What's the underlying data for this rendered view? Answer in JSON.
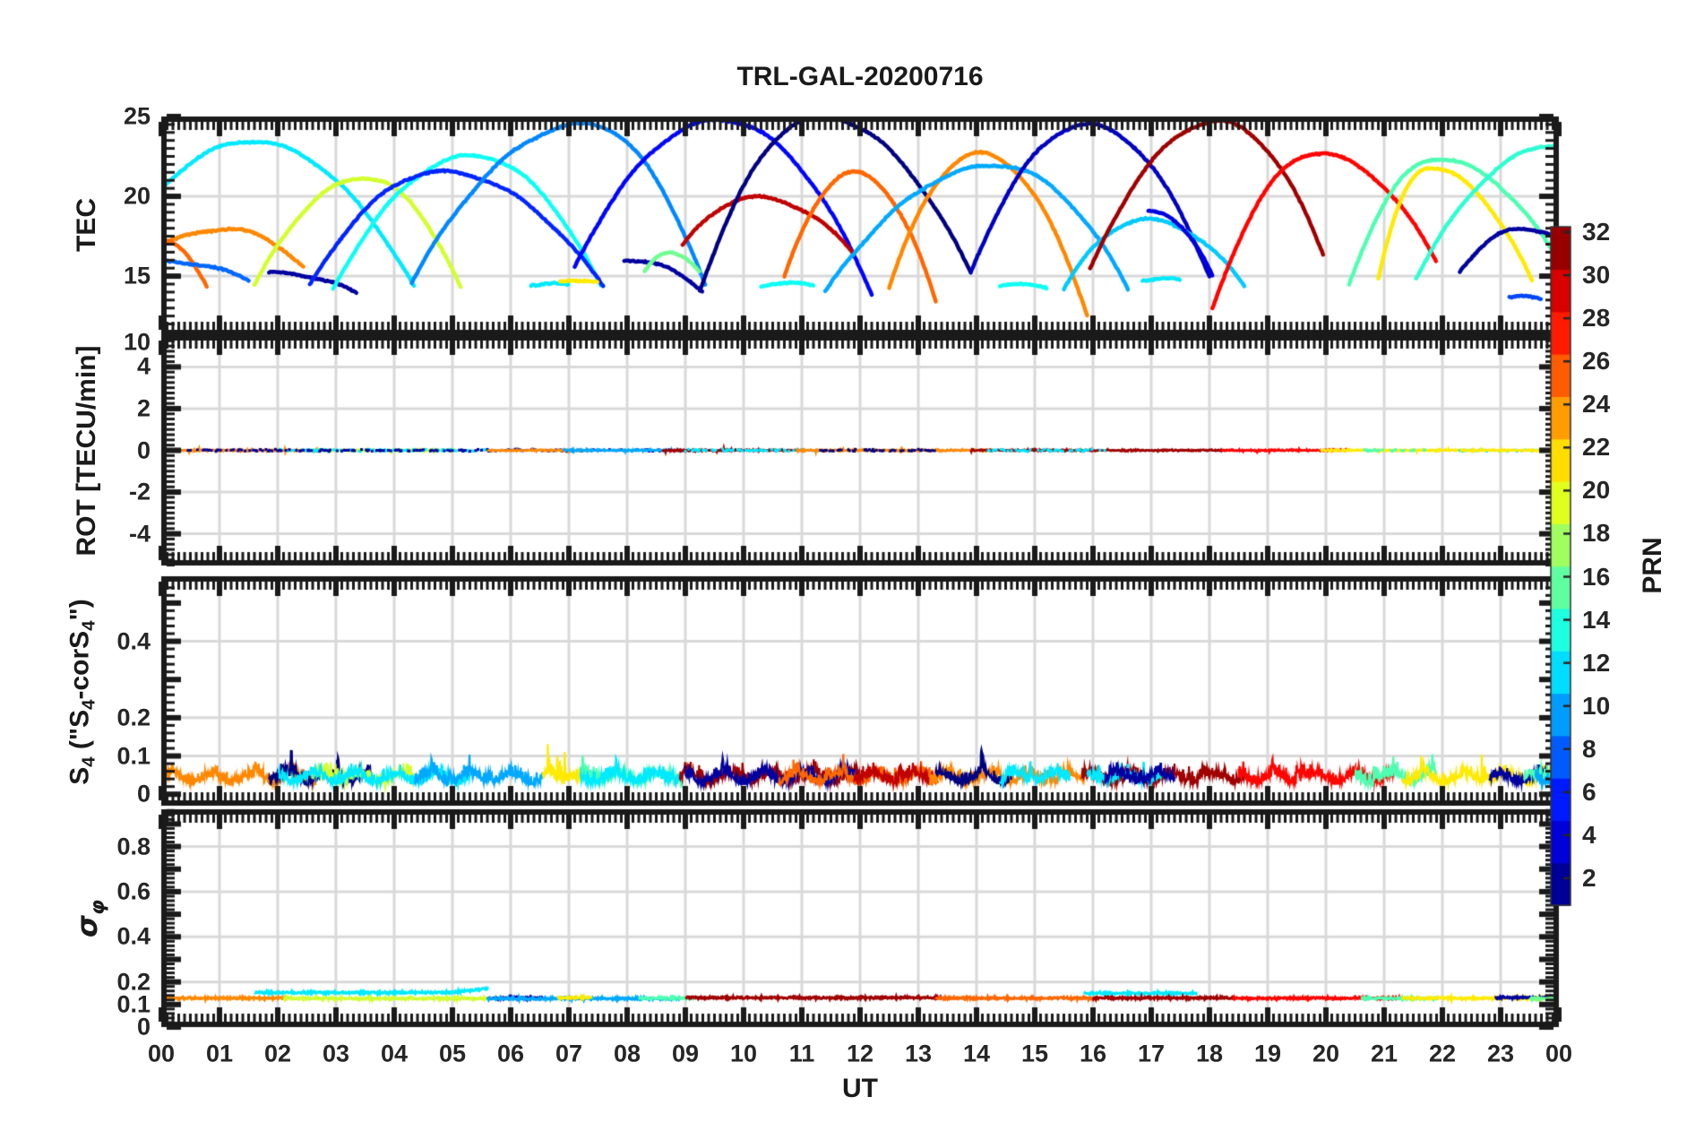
{
  "figure": {
    "title": "TRL-GAL-20200716",
    "xlabel": "UT",
    "background": "#ffffff",
    "axis_color": "#1a1a1a",
    "tick_label_color": "#262626",
    "grid_color": "#d9d9d9"
  },
  "x_axis": {
    "tick_labels": [
      "00",
      "01",
      "02",
      "03",
      "04",
      "05",
      "06",
      "07",
      "08",
      "09",
      "10",
      "11",
      "12",
      "13",
      "14",
      "15",
      "16",
      "17",
      "18",
      "19",
      "20",
      "21",
      "22",
      "23",
      "00"
    ],
    "tick_values": [
      0,
      1,
      2,
      3,
      4,
      5,
      6,
      7,
      8,
      9,
      10,
      11,
      12,
      13,
      14,
      15,
      16,
      17,
      18,
      19,
      20,
      21,
      22,
      23,
      24
    ],
    "xlim": [
      0,
      24
    ]
  },
  "colorbar": {
    "label": "PRN",
    "tick_labels": [
      "2",
      "4",
      "6",
      "8",
      "10",
      "12",
      "14",
      "16",
      "18",
      "20",
      "22",
      "24",
      "26",
      "28",
      "30",
      "32"
    ],
    "tick_values": [
      2,
      4,
      6,
      8,
      10,
      12,
      14,
      16,
      18,
      20,
      22,
      24,
      26,
      28,
      30,
      32
    ],
    "clim": [
      0.75,
      32.25
    ],
    "colormap": "jet",
    "steps": 16
  },
  "chart_data": [
    {
      "id": "tec",
      "type": "line",
      "ylabel": "TEC",
      "ylim": [
        11.3,
        25
      ],
      "ytick_labels": [
        {
          "v": 25,
          "label": "25"
        },
        {
          "v": 20,
          "label": "20"
        },
        {
          "v": 15,
          "label": "15"
        }
      ],
      "ytick_major_step": 5,
      "ytick_minor_step": 0.5,
      "grid_values": [
        15,
        20
      ],
      "series": [
        {
          "name": "PRN 24",
          "prn": 24,
          "t": [
            0,
            1.15,
            2.45
          ],
          "v": [
            16.9,
            17.95,
            15.5
          ]
        },
        {
          "name": "PRN 25",
          "prn": 25,
          "t": [
            0,
            0.02,
            0.78
          ],
          "v": [
            17.2,
            17.2,
            14.4
          ]
        },
        {
          "name": "PRN 8",
          "prn": 8,
          "t": [
            0,
            0.1,
            1.5
          ],
          "v": [
            15.85,
            15.9,
            14.75
          ]
        },
        {
          "name": "PRN 12",
          "prn": 12,
          "t": [
            -0.9,
            1.55,
            4.35
          ],
          "v": [
            16,
            23.45,
            14.3
          ]
        },
        {
          "name": "PRN 2",
          "prn": 2,
          "t": [
            1.85,
            1.95,
            3.35
          ],
          "v": [
            15.15,
            15.2,
            13.95
          ]
        },
        {
          "name": "PRN 19",
          "prn": 19,
          "t": [
            1.6,
            3.5,
            5.15
          ],
          "v": [
            14.4,
            21.15,
            14.2
          ]
        },
        {
          "name": "PRN 13",
          "prn": 13,
          "t": [
            2.95,
            5.35,
            7.55
          ],
          "v": [
            14.2,
            22.55,
            14.35
          ]
        },
        {
          "name": "PRN 6",
          "prn": 6,
          "t": [
            2.55,
            4.8,
            7.6
          ],
          "v": [
            14.4,
            21.55,
            14.3
          ]
        },
        {
          "name": "PRN 9",
          "prn": 9,
          "t": [
            4.3,
            7.3,
            9.35
          ],
          "v": [
            14.6,
            24.55,
            14.3
          ]
        },
        {
          "name": "PRN 5",
          "prn": 5,
          "t": [
            7.1,
            9.6,
            12.2
          ],
          "v": [
            15.6,
            24.8,
            13.9
          ]
        },
        {
          "name": "PRN 30",
          "prn": 30,
          "t": [
            8.95,
            10.2,
            11.9
          ],
          "v": [
            16.9,
            19.95,
            16.4
          ]
        },
        {
          "name": "PRN 1",
          "prn": 1,
          "t": [
            9.25,
            11.3,
            13.9
          ],
          "v": [
            14.1,
            25.0,
            15.2
          ]
        },
        {
          "name": "PRN 2b",
          "prn": 2,
          "t": [
            7.95,
            8.05,
            9.3
          ],
          "v": [
            16.0,
            16.0,
            14.05
          ]
        },
        {
          "name": "PRN 16",
          "prn": 16,
          "t": [
            8.3,
            8.75,
            9.25
          ],
          "v": [
            15.3,
            16.45,
            15.3
          ]
        },
        {
          "name": "PRN 25b",
          "prn": 25,
          "t": [
            10.7,
            11.9,
            13.3
          ],
          "v": [
            14.9,
            21.5,
            13.4
          ]
        },
        {
          "name": "PRN 24b",
          "prn": 24,
          "t": [
            12.5,
            14.05,
            15.9
          ],
          "v": [
            14.3,
            22.7,
            12.6
          ]
        },
        {
          "name": "PRN 10",
          "prn": 10,
          "t": [
            11.4,
            14.35,
            16.6
          ],
          "v": [
            14.0,
            21.95,
            14.2
          ]
        },
        {
          "name": "PRN 3",
          "prn": 3,
          "t": [
            13.9,
            15.9,
            18.0
          ],
          "v": [
            15.2,
            24.5,
            15.0
          ]
        },
        {
          "name": "PRN 11",
          "prn": 11,
          "t": [
            15.5,
            16.9,
            18.6
          ],
          "v": [
            14.2,
            18.55,
            14.4
          ]
        },
        {
          "name": "PRN 13b",
          "prn": 13,
          "t": [
            10.3,
            10.7,
            11.2
          ],
          "v": [
            14.4,
            14.55,
            14.4
          ]
        },
        {
          "name": "PRN 13c",
          "prn": 13,
          "t": [
            14.4,
            14.8,
            15.2
          ],
          "v": [
            14.3,
            14.55,
            14.25
          ]
        },
        {
          "name": "PRN 12b",
          "prn": 12,
          "t": [
            6.35,
            6.7,
            7.0
          ],
          "v": [
            14.45,
            14.55,
            14.4
          ]
        },
        {
          "name": "PRN 12c",
          "prn": 12,
          "t": [
            16.85,
            17.2,
            17.5
          ],
          "v": [
            14.75,
            14.85,
            14.7
          ]
        },
        {
          "name": "PRN 21",
          "prn": 21,
          "t": [
            6.85,
            7.2,
            7.5
          ],
          "v": [
            14.65,
            14.75,
            14.65
          ]
        },
        {
          "name": "PRN 31",
          "prn": 31,
          "t": [
            15.95,
            18.15,
            19.95
          ],
          "v": [
            15.4,
            24.7,
            16.4
          ]
        },
        {
          "name": "PRN 4",
          "prn": 4,
          "t": [
            16.95,
            17.05,
            18.05
          ],
          "v": [
            19.0,
            19.0,
            15.0
          ]
        },
        {
          "name": "PRN 28",
          "prn": 28,
          "t": [
            18.05,
            19.85,
            21.9
          ],
          "v": [
            12.9,
            22.7,
            15.9
          ]
        },
        {
          "name": "PRN 15",
          "prn": 15,
          "t": [
            20.4,
            21.9,
            23.95
          ],
          "v": [
            14.5,
            22.35,
            16.2
          ]
        },
        {
          "name": "PRN 21b",
          "prn": 21,
          "t": [
            20.9,
            21.75,
            23.55
          ],
          "v": [
            14.8,
            21.8,
            14.6
          ]
        },
        {
          "name": "PRN 14",
          "prn": 14,
          "t": [
            21.55,
            23.95,
            24.0
          ],
          "v": [
            14.9,
            23.2,
            23.3
          ]
        },
        {
          "name": "PRN 2c",
          "prn": 2,
          "t": [
            22.3,
            23.35,
            24.0
          ],
          "v": [
            15.3,
            17.95,
            17.5
          ]
        },
        {
          "name": "PRN 7",
          "prn": 7,
          "t": [
            23.15,
            23.4,
            23.7
          ],
          "v": [
            13.65,
            13.8,
            13.6
          ]
        }
      ]
    },
    {
      "id": "rot",
      "type": "line",
      "ylabel": "ROT [TECU/min]",
      "ylim": [
        -5.52,
        5.52
      ],
      "ylim_top_label": "10",
      "ytick_labels": [
        {
          "v": 4,
          "label": "4"
        },
        {
          "v": 2,
          "label": "2"
        },
        {
          "v": 0,
          "label": "0"
        },
        {
          "v": -2,
          "label": "-2"
        },
        {
          "v": -4,
          "label": "-4"
        }
      ],
      "ytick_major_step": 2,
      "ytick_minor_step": 0.25,
      "grid_values": [
        -4,
        -2,
        0,
        2,
        4
      ],
      "segments": [
        {
          "prn": 24,
          "t": [
            0,
            2.7
          ]
        },
        {
          "prn": 19,
          "t": [
            2.6,
            5.05
          ]
        },
        {
          "prn": 12,
          "t": [
            2.0,
            5.6
          ],
          "sparse": true
        },
        {
          "prn": 2,
          "t": [
            0.3,
            8.6
          ],
          "sparse": true
        },
        {
          "prn": 24,
          "t": [
            5.6,
            7.35
          ]
        },
        {
          "prn": 10,
          "t": [
            6.9,
            9.0
          ]
        },
        {
          "prn": 31,
          "t": [
            8.6,
            11.05
          ]
        },
        {
          "prn": 12,
          "t": [
            9.0,
            11.3
          ],
          "sparse": true
        },
        {
          "prn": 24,
          "t": [
            10.9,
            14.2
          ]
        },
        {
          "prn": 1,
          "t": [
            11.3,
            13.3
          ],
          "sparse": true
        },
        {
          "prn": 31,
          "t": [
            13.9,
            18.3
          ]
        },
        {
          "prn": 12,
          "t": [
            14.2,
            16.2
          ],
          "sparse": true
        },
        {
          "prn": 28,
          "t": [
            18.2,
            20.4
          ]
        },
        {
          "prn": 21,
          "t": [
            19.9,
            22.4
          ]
        },
        {
          "prn": 15,
          "t": [
            20.6,
            21.7
          ],
          "sparse": true
        },
        {
          "prn": 12,
          "t": [
            22.3,
            23.85
          ],
          "sparse": true
        },
        {
          "prn": 21,
          "t": [
            22.3,
            23.9
          ]
        },
        {
          "prn": 15,
          "t": [
            23.8,
            24
          ]
        }
      ]
    },
    {
      "id": "s4",
      "type": "line",
      "ylabel": "S4 (\"S4-corS4\")",
      "ylabel_parts": [
        {
          "t": "S"
        },
        {
          "s": "4"
        },
        {
          "t": " (\"S"
        },
        {
          "s": "4"
        },
        {
          "t": "-corS"
        },
        {
          "s": "4"
        },
        {
          "t": "\")"
        }
      ],
      "ylim": [
        -0.03,
        0.57
      ],
      "ytick_labels": [
        {
          "v": 0.4,
          "label": "0.4"
        },
        {
          "v": 0.2,
          "label": "0.2"
        },
        {
          "v": 0.1,
          "label": "0.1"
        },
        {
          "v": 0,
          "label": "0"
        }
      ],
      "ytick_major_step": 0.1,
      "ytick_minor_step": 0.02,
      "grid_values": [
        0.1,
        0.2,
        0.4
      ],
      "segments": [
        {
          "prn": 24,
          "t": [
            0,
            2.65
          ],
          "peak": 0.16
        },
        {
          "prn": 1,
          "t": [
            1.85,
            3.6
          ],
          "peak": 0.2
        },
        {
          "prn": 19,
          "t": [
            2.6,
            4.4
          ],
          "peak": 0.13
        },
        {
          "prn": 12,
          "t": [
            2.0,
            5.3
          ],
          "peak": 0.1
        },
        {
          "prn": 10,
          "t": [
            4.35,
            6.55
          ],
          "peak": 0.13
        },
        {
          "prn": 21,
          "t": [
            6.55,
            7.25
          ],
          "peak": 0.22
        },
        {
          "prn": 15,
          "t": [
            7.2,
            8.95
          ],
          "peak": 0.15
        },
        {
          "prn": 12,
          "t": [
            7.2,
            8.9
          ],
          "peak": 0.12
        },
        {
          "prn": 31,
          "t": [
            8.9,
            12.0
          ],
          "peak": 0.13
        },
        {
          "prn": 2,
          "t": [
            9.0,
            12.0
          ],
          "peak": 0.12
        },
        {
          "prn": 25,
          "t": [
            10.6,
            13.35
          ],
          "peak": 0.12
        },
        {
          "prn": 30,
          "t": [
            11.9,
            13.25
          ],
          "peak": 0.14
        },
        {
          "prn": 24,
          "t": [
            13.2,
            15.85
          ],
          "peak": 0.13
        },
        {
          "prn": 1,
          "t": [
            13.3,
            14.6
          ],
          "peak": 0.2
        },
        {
          "prn": 12,
          "t": [
            14.4,
            15.6
          ],
          "peak": 0.17
        },
        {
          "prn": 31,
          "t": [
            15.8,
            18.6
          ],
          "peak": 0.13
        },
        {
          "prn": 12,
          "t": [
            15.9,
            17.2
          ],
          "peak": 0.15
        },
        {
          "prn": 2,
          "t": [
            16.2,
            17.4
          ],
          "peak": 0.15
        },
        {
          "prn": 28,
          "t": [
            18.5,
            21.2
          ],
          "peak": 0.14
        },
        {
          "prn": 15,
          "t": [
            20.5,
            21.9
          ],
          "peak": 0.15
        },
        {
          "prn": 21,
          "t": [
            21.3,
            23.95
          ],
          "peak": 0.19
        },
        {
          "prn": 2,
          "t": [
            22.8,
            23.9
          ],
          "peak": 0.17
        },
        {
          "prn": 15,
          "t": [
            23.4,
            24
          ],
          "peak": 0.11
        },
        {
          "prn": 10,
          "t": [
            23.6,
            24
          ],
          "peak": 0.12
        }
      ]
    },
    {
      "id": "sigma_phi",
      "type": "line",
      "ylabel": "sigma_phi",
      "ylabel_parts": [
        {
          "t": "σ",
          "italic": true
        },
        {
          "s": "φ",
          "italic": true
        }
      ],
      "ylim": [
        0,
        0.965
      ],
      "ytick_labels": [
        {
          "v": 0.8,
          "label": "0.8"
        },
        {
          "v": 0.6,
          "label": "0.6"
        },
        {
          "v": 0.4,
          "label": "0.4"
        },
        {
          "v": 0.2,
          "label": "0.2"
        },
        {
          "v": 0.1,
          "label": "0.1"
        },
        {
          "v": 0,
          "label": "0"
        }
      ],
      "ytick_major_step": 0.1,
      "ytick_minor_step": 0.02,
      "grid_values": [
        0.2,
        0.4,
        0.6,
        0.8
      ],
      "segments": [
        {
          "prn": 24,
          "t": [
            0,
            2.15
          ],
          "level": 0.128
        },
        {
          "prn": 12,
          "t": [
            1.6,
            5.62
          ],
          "level": 0.153,
          "rise": 0.172
        },
        {
          "prn": 19,
          "t": [
            2.1,
            5.6
          ],
          "level": 0.127
        },
        {
          "prn": 2,
          "t": [
            5.6,
            6.6
          ],
          "level": 0.128
        },
        {
          "prn": 10,
          "t": [
            5.6,
            8.9
          ],
          "level": 0.126
        },
        {
          "prn": 21,
          "t": [
            6.8,
            7.4
          ],
          "level": 0.13
        },
        {
          "prn": 15,
          "t": [
            8.2,
            9.15
          ],
          "level": 0.128
        },
        {
          "prn": 31,
          "t": [
            9.0,
            13.4
          ],
          "level": 0.13
        },
        {
          "prn": 25,
          "t": [
            13.3,
            16.1
          ],
          "level": 0.128
        },
        {
          "prn": 12,
          "t": [
            15.85,
            17.8
          ],
          "level": 0.15
        },
        {
          "prn": 31,
          "t": [
            16.0,
            18.45
          ],
          "level": 0.129
        },
        {
          "prn": 28,
          "t": [
            18.4,
            21.3
          ],
          "level": 0.128
        },
        {
          "prn": 15,
          "t": [
            20.6,
            21.95
          ],
          "level": 0.127
        },
        {
          "prn": 21,
          "t": [
            21.3,
            23.95
          ],
          "level": 0.128
        },
        {
          "prn": 2,
          "t": [
            22.9,
            23.9
          ],
          "level": 0.131
        },
        {
          "prn": 16,
          "t": [
            23.5,
            24
          ],
          "level": 0.126
        }
      ]
    }
  ]
}
